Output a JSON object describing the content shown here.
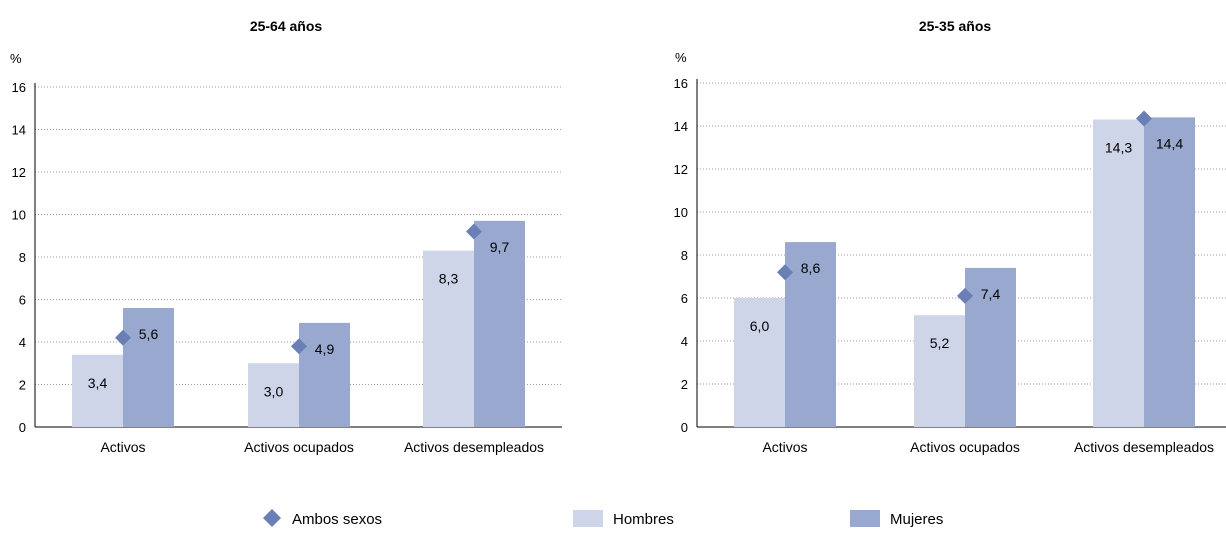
{
  "chart_data": [
    {
      "type": "bar",
      "title": "25-64 años",
      "ylabel": "%",
      "ylim": [
        0,
        16
      ],
      "yticks": [
        0,
        2,
        4,
        6,
        8,
        10,
        12,
        14,
        16
      ],
      "grid": true,
      "categories": [
        "Activos",
        "Activos ocupados",
        "Activos desempleados"
      ],
      "series": [
        {
          "name": "Hombres",
          "kind": "bar",
          "values": [
            3.4,
            3.0,
            8.3
          ],
          "labels": [
            "3,4",
            "3,0",
            "8,3"
          ]
        },
        {
          "name": "Mujeres",
          "kind": "bar",
          "values": [
            5.6,
            4.9,
            9.7
          ],
          "labels": [
            "5,6",
            "4,9",
            "9,7"
          ]
        },
        {
          "name": "Ambos sexos",
          "kind": "marker",
          "values": [
            4.2,
            3.8,
            9.2
          ]
        }
      ]
    },
    {
      "type": "bar",
      "title": "25-35 años",
      "ylabel": "%",
      "ylim": [
        0,
        16
      ],
      "yticks": [
        0,
        2,
        4,
        6,
        8,
        10,
        12,
        14,
        16
      ],
      "grid": true,
      "categories": [
        "Activos",
        "Activos ocupados",
        "Activos desempleados"
      ],
      "series": [
        {
          "name": "Hombres",
          "kind": "bar",
          "values": [
            6.0,
            5.2,
            14.3
          ],
          "labels": [
            "6,0",
            "5,2",
            "14,3"
          ]
        },
        {
          "name": "Mujeres",
          "kind": "bar",
          "values": [
            8.6,
            7.4,
            14.4
          ],
          "labels": [
            "8,6",
            "7,4",
            "14,4"
          ]
        },
        {
          "name": "Ambos sexos",
          "kind": "marker",
          "values": [
            7.2,
            6.1,
            14.35
          ]
        }
      ]
    }
  ],
  "legend": [
    {
      "label": "Ambos sexos",
      "shape": "diamond",
      "color": "#6a7fb5"
    },
    {
      "label": "Hombres",
      "shape": "square",
      "color": "#cfd5e8"
    },
    {
      "label": "Mujeres",
      "shape": "square",
      "color": "#98a8cf"
    }
  ],
  "colors": {
    "hombres": "#cfd5e8",
    "mujeres": "#98a8cf",
    "ambos": "#6a7fb5"
  }
}
